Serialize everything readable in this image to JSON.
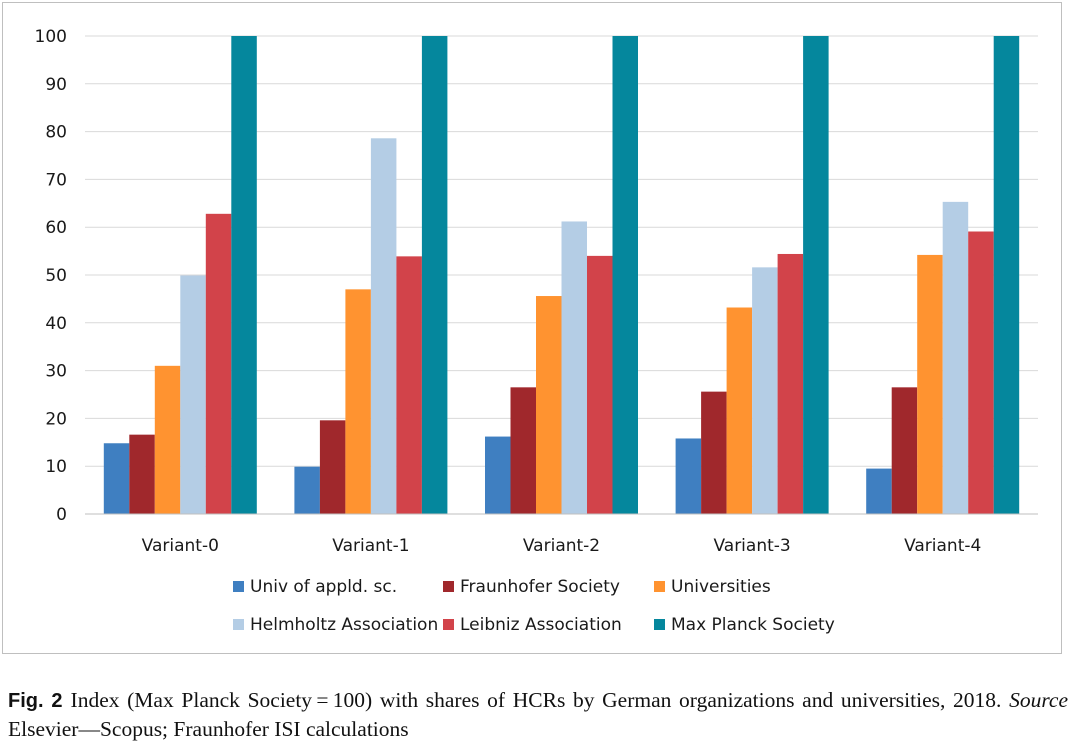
{
  "chart_data": {
    "type": "bar",
    "title": "",
    "xlabel": "",
    "ylabel": "",
    "ylim": [
      0,
      100
    ],
    "yticks": [
      0,
      10,
      20,
      30,
      40,
      50,
      60,
      70,
      80,
      90,
      100
    ],
    "grid": true,
    "legend_position": "bottom",
    "categories": [
      "Variant-0",
      "Variant-1",
      "Variant-2",
      "Variant-3",
      "Variant-4"
    ],
    "series": [
      {
        "name": "Univ of appld. sc.",
        "color": "#3f7fc1",
        "values": [
          14.8,
          9.9,
          16.2,
          15.8,
          9.5
        ]
      },
      {
        "name": "Fraunhofer Society",
        "color": "#a0282c",
        "values": [
          16.6,
          19.6,
          26.5,
          25.6,
          26.5
        ]
      },
      {
        "name": "Universities",
        "color": "#ff9330",
        "values": [
          31.0,
          47.0,
          45.6,
          43.2,
          54.2
        ]
      },
      {
        "name": "Helmholtz Association",
        "color": "#b4cde5",
        "values": [
          49.9,
          78.6,
          61.2,
          51.6,
          65.3
        ]
      },
      {
        "name": "Leibniz Association",
        "color": "#d2434a",
        "values": [
          62.8,
          53.9,
          54.0,
          54.4,
          59.1
        ]
      },
      {
        "name": "Max Planck Society",
        "color": "#05879d",
        "values": [
          100,
          100,
          100,
          100,
          100
        ]
      }
    ]
  },
  "caption": {
    "label": "Fig. 2",
    "text_before": "Index (Max Planck Society = 100) with shares of HCRs by German organizations and universities, 2018.",
    "source_label": "Source",
    "text_after": "Elsevier—Scopus; Fraunhofer ISI calculations"
  }
}
